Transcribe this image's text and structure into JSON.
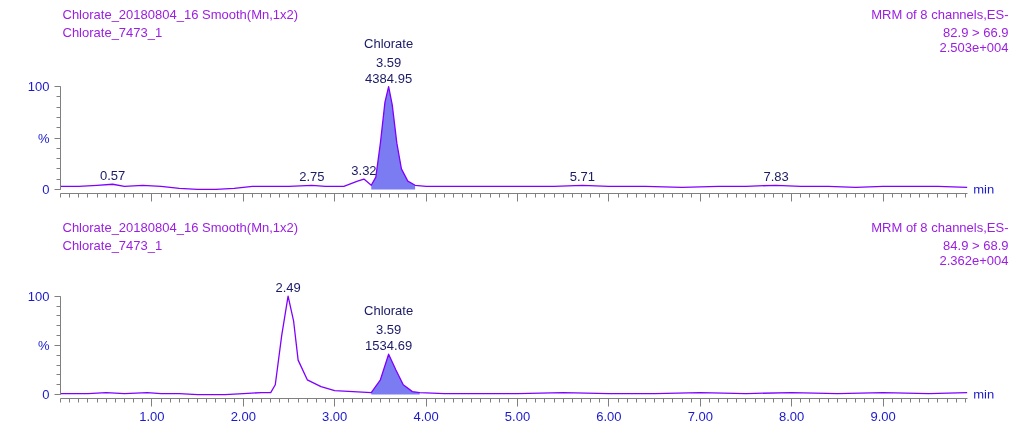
{
  "chart_data": [
    {
      "type": "line",
      "title": "Chlorate_20180804_16 Smooth(Mn,1x2)",
      "subtitle": "Chlorate_7473_1",
      "xlabel": "min",
      "annotations": [
        "MRM of 8 channels,ES-",
        "82.9 > 66.9",
        "2.503e+004",
        {
          "text": "0.57",
          "x": 0.57,
          "y": 5
        },
        {
          "text": "2.75",
          "x": 2.75,
          "y": 4
        },
        {
          "text": "3.32",
          "x": 3.32,
          "y": 10
        },
        {
          "text": "4384.95",
          "x": 3.59,
          "y": 100
        },
        {
          "text": "3.59",
          "x": 3.59,
          "y": 100
        },
        {
          "text": "Chlorate",
          "x": 3.59,
          "y": 100
        },
        {
          "text": "5.71",
          "x": 5.71,
          "y": 4
        },
        {
          "text": "7.83",
          "x": 7.83,
          "y": 4
        }
      ],
      "series": [
        {
          "color": "#7f00ff",
          "x": [
            0,
            0.2,
            0.4,
            0.57,
            0.7,
            0.9,
            1.1,
            1.3,
            1.5,
            1.7,
            1.9,
            2.1,
            2.3,
            2.5,
            2.75,
            2.9,
            3.1,
            3.25,
            3.32,
            3.4,
            3.45,
            3.5,
            3.55,
            3.59,
            3.63,
            3.68,
            3.73,
            3.8,
            3.88,
            4.0,
            4.3,
            4.6,
            5.0,
            5.4,
            5.71,
            6.0,
            6.4,
            6.8,
            7.2,
            7.5,
            7.83,
            8.1,
            8.4,
            8.7,
            9.0,
            9.3,
            9.6,
            9.92
          ],
          "values": [
            3,
            3,
            4,
            5,
            3,
            4,
            3,
            1,
            0,
            0,
            1,
            3,
            3,
            3,
            4,
            3,
            3,
            8,
            10,
            4,
            12,
            45,
            85,
            100,
            82,
            45,
            20,
            8,
            4,
            3,
            3,
            3,
            3,
            3,
            4,
            3,
            3,
            2,
            3,
            3,
            4,
            3,
            3,
            2,
            3,
            3,
            3,
            2
          ]
        },
        {
          "type": "area",
          "color": "#7b7bf2",
          "x": [
            3.4,
            3.45,
            3.5,
            3.55,
            3.59,
            3.63,
            3.68,
            3.73,
            3.8,
            3.88
          ],
          "values": [
            4,
            12,
            45,
            85,
            100,
            82,
            45,
            20,
            8,
            4
          ]
        }
      ],
      "xlim": [
        0,
        9.92
      ],
      "ylim": [
        0,
        100
      ],
      "xticks": [
        1,
        2,
        3,
        4,
        5,
        6,
        7,
        8,
        9
      ],
      "yticks": [
        0,
        {
          "value": 50,
          "label": "%"
        },
        100
      ],
      "tick_labels": "y"
    },
    {
      "type": "line",
      "title": "Chlorate_20180804_16 Smooth(Mn,1x2)",
      "subtitle": "Chlorate_7473_1",
      "xlabel": "min",
      "annotations": [
        "MRM of 8 channels,ES-",
        "84.9 > 68.9",
        "2.362e+004",
        {
          "text": "2.49",
          "x": 2.49,
          "y": 100
        },
        {
          "text": "1534.69",
          "x": 3.59,
          "y": 41
        },
        {
          "text": "3.59",
          "x": 3.59,
          "y": 41
        },
        {
          "text": "Chlorate",
          "x": 3.59,
          "y": 41
        }
      ],
      "series": [
        {
          "color": "#7f00ff",
          "x": [
            0,
            0.3,
            0.5,
            0.7,
            0.95,
            1.1,
            1.3,
            1.5,
            1.8,
            2.0,
            2.2,
            2.3,
            2.35,
            2.42,
            2.49,
            2.55,
            2.6,
            2.7,
            2.85,
            3.0,
            3.2,
            3.4,
            3.5,
            3.59,
            3.67,
            3.75,
            3.85,
            3.93,
            4.2,
            4.6,
            5.0,
            5.5,
            6.0,
            6.5,
            7.0,
            7.5,
            8.0,
            8.5,
            9.0,
            9.5,
            9.92
          ],
          "values": [
            1,
            1,
            2,
            1,
            2,
            1,
            1,
            0,
            0,
            1,
            2,
            2,
            10,
            60,
            100,
            75,
            35,
            15,
            8,
            4,
            3,
            2,
            15,
            41,
            25,
            10,
            3,
            2,
            1,
            1,
            1,
            2,
            1,
            1,
            2,
            1,
            2,
            1,
            2,
            1,
            2
          ]
        },
        {
          "type": "area",
          "color": "#7b7bf2",
          "x": [
            3.4,
            3.5,
            3.59,
            3.67,
            3.75,
            3.85,
            3.93
          ],
          "values": [
            2,
            15,
            41,
            25,
            10,
            3,
            2
          ]
        }
      ],
      "xlim": [
        0,
        9.92
      ],
      "ylim": [
        0,
        100
      ],
      "xticks": [
        {
          "value": 1,
          "label": "1.00"
        },
        {
          "value": 2,
          "label": "2.00"
        },
        {
          "value": 3,
          "label": "3.00"
        },
        {
          "value": 4,
          "label": "4.00"
        },
        {
          "value": 5,
          "label": "5.00"
        },
        {
          "value": 6,
          "label": "6.00"
        },
        {
          "value": 7,
          "label": "7.00"
        },
        {
          "value": 8,
          "label": "8.00"
        },
        {
          "value": 9,
          "label": "9.00"
        }
      ],
      "yticks": [
        0,
        {
          "value": 50,
          "label": "%"
        },
        100
      ]
    }
  ]
}
